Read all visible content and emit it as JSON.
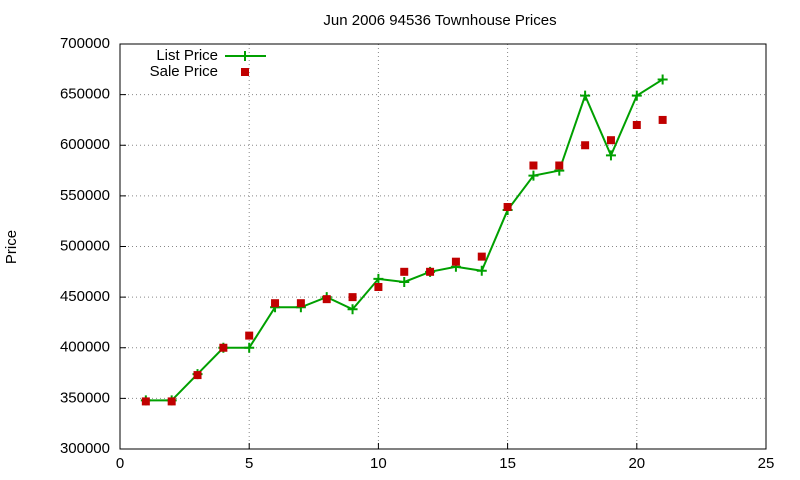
{
  "chart_data": {
    "type": "line",
    "title": "Jun 2006 94536 Townhouse Prices",
    "y_label": "Price",
    "x": [
      1,
      2,
      3,
      4,
      5,
      6,
      7,
      8,
      9,
      10,
      11,
      12,
      13,
      14,
      15,
      16,
      17,
      18,
      19,
      20,
      21
    ],
    "series": [
      {
        "name": "List Price",
        "color": "#00a000",
        "style": "linespoints",
        "values": [
          348000,
          348000,
          374000,
          400000,
          400000,
          440000,
          440000,
          450000,
          438000,
          468000,
          465000,
          475000,
          480000,
          476000,
          536000,
          570000,
          575000,
          649000,
          590000,
          649000,
          665000
        ]
      },
      {
        "name": "Sale Price",
        "color": "#c00000",
        "style": "points",
        "values": [
          347000,
          347000,
          373000,
          400000,
          412000,
          444000,
          444000,
          448000,
          450000,
          460000,
          475000,
          475000,
          485000,
          490000,
          539000,
          580000,
          580000,
          600000,
          605000,
          620000,
          625000
        ]
      }
    ],
    "xlim": [
      0,
      25
    ],
    "xticks": [
      0,
      5,
      10,
      15,
      20,
      25
    ],
    "ylim": [
      300000,
      700000
    ],
    "yticks": [
      300000,
      350000,
      400000,
      450000,
      500000,
      550000,
      600000,
      650000,
      700000
    ],
    "grid": true,
    "legend": "top-left"
  }
}
